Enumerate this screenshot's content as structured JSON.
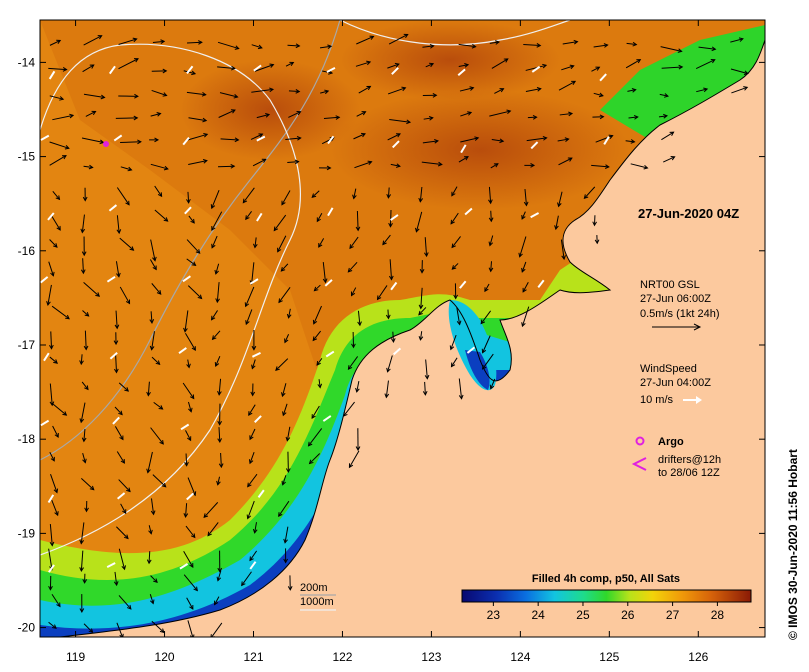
{
  "map": {
    "lon_min": 118.6,
    "lon_max": 126.75,
    "lat_min": -20.1,
    "lat_max": -13.55,
    "lat_ticks": [
      -14,
      -15,
      -16,
      -17,
      -18,
      -19,
      -20
    ],
    "lon_ticks": [
      119,
      120,
      121,
      122,
      123,
      124,
      125,
      126
    ],
    "lat_tick_labels": [
      "-14",
      "-15",
      "-16",
      "-17",
      "-18",
      "-19",
      "-20"
    ],
    "lon_tick_labels": [
      "119",
      "120",
      "121",
      "122",
      "123",
      "124",
      "125",
      "126"
    ]
  },
  "timestamp": "27-Jun-2020 04Z",
  "current_legend": {
    "source": "NRT00 GSL",
    "time": "27-Jun 06:00Z",
    "scale": "0.5m/s (1kt 24h)"
  },
  "wind_legend": {
    "title": "WindSpeed",
    "time": "27-Jun 04:00Z",
    "scale": "10 m/s"
  },
  "argo_legend": {
    "label": "Argo",
    "color": "#e020e0"
  },
  "drifters_legend": {
    "line1": "drifters@12h",
    "line2": "to 28/06 12Z",
    "color": "#e020e0"
  },
  "isobaths": {
    "line1": "200m",
    "line2": "1000m"
  },
  "colorbar": {
    "title": "Filled 4h comp, p50, All Sats",
    "ticks": [
      "23",
      "24",
      "25",
      "26",
      "27",
      "28"
    ],
    "tick_values": [
      23,
      24,
      25,
      26,
      27,
      28
    ],
    "min": 22.3,
    "max": 28.75
  },
  "credit": "© IMOS 30-Jun-2020 11:56 Hobart",
  "colors": {
    "land": "#fcc99e",
    "warm": "#d9760b",
    "hot": "#b5480b",
    "green": "#2ed42a",
    "cyan": "#13c9d8",
    "blue": "#1a3fb0",
    "navy": "#0a0a6a"
  }
}
